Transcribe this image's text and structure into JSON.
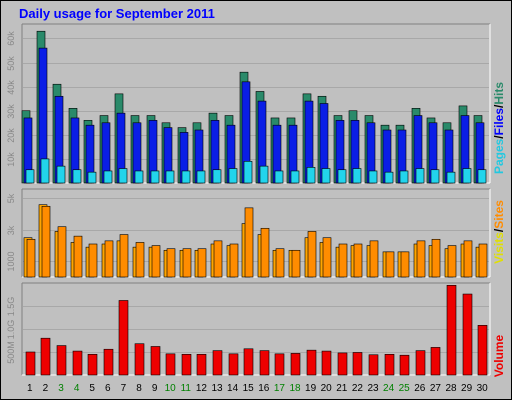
{
  "title": "Daily usage for September 2011",
  "colors": {
    "hits": "#2a8a6a",
    "files": "#0a1ee6",
    "pages": "#22d4ec",
    "visits": "#ffa500",
    "sites": "#ff8c00",
    "volume": "#ee0000",
    "weekend": "#008000",
    "weekday": "#000000"
  },
  "legends": {
    "top": [
      {
        "text": "Pages",
        "color": "#22c8e0"
      },
      {
        "text": "/",
        "color": "#000000"
      },
      {
        "text": "Files",
        "color": "#0000ff"
      },
      {
        "text": "/",
        "color": "#000000"
      },
      {
        "text": "Hits",
        "color": "#2a8a6a"
      }
    ],
    "middle": [
      {
        "text": "Visits",
        "color": "#e0e000"
      },
      {
        "text": "/",
        "color": "#000000"
      },
      {
        "text": "Sites",
        "color": "#ff8c00"
      }
    ],
    "bottom": [
      {
        "text": "Volume",
        "color": "#ee0000"
      }
    ]
  },
  "chart_data": {
    "type": "bar",
    "title": "Daily usage for September 2011",
    "categories": [
      "1",
      "2",
      "3",
      "4",
      "5",
      "6",
      "7",
      "8",
      "9",
      "10",
      "11",
      "12",
      "13",
      "14",
      "15",
      "16",
      "17",
      "18",
      "19",
      "20",
      "21",
      "22",
      "23",
      "24",
      "25",
      "26",
      "27",
      "28",
      "29",
      "30"
    ],
    "weekend_days": [
      "3",
      "4",
      "10",
      "11",
      "17",
      "18",
      "24",
      "25"
    ],
    "panels": [
      {
        "name": "hits-files-pages",
        "yticks": [
          "10k",
          "20k",
          "30k",
          "40k",
          "50k",
          "60k"
        ],
        "ytick_values": [
          10000,
          20000,
          30000,
          40000,
          50000,
          60000
        ],
        "ylim": [
          0,
          66000
        ],
        "series": [
          {
            "name": "Hits",
            "values": [
              30000,
              63000,
              41000,
              31000,
              26000,
              28000,
              37000,
              28000,
              28000,
              25000,
              23000,
              25000,
              29000,
              28000,
              46000,
              38000,
              27000,
              27000,
              37000,
              36000,
              28000,
              30000,
              28000,
              24000,
              24000,
              31000,
              27000,
              25000,
              32000,
              28000
            ]
          },
          {
            "name": "Files",
            "values": [
              27000,
              56000,
              36000,
              27000,
              24000,
              25000,
              29000,
              25000,
              26000,
              23000,
              21000,
              22000,
              26000,
              24000,
              42000,
              34000,
              24000,
              24000,
              34000,
              33000,
              26000,
              26000,
              25000,
              22000,
              22000,
              28000,
              25000,
              22000,
              28000,
              25000
            ]
          },
          {
            "name": "Pages",
            "values": [
              5500,
              10000,
              7000,
              5500,
              4500,
              5000,
              6000,
              5000,
              5000,
              5000,
              5000,
              5000,
              5500,
              6000,
              9000,
              7000,
              5000,
              5000,
              6500,
              6000,
              5500,
              6000,
              5000,
              4500,
              5000,
              6000,
              5500,
              4500,
              6000,
              5500
            ]
          }
        ]
      },
      {
        "name": "visits-sites",
        "yticks": [
          "1000",
          "3k",
          "5k"
        ],
        "ytick_values": [
          1000,
          3000,
          5000
        ],
        "ylim": [
          0,
          5600
        ],
        "series": [
          {
            "name": "Visits",
            "values": [
              2500,
              4600,
              2900,
              2200,
              1900,
              2100,
              2300,
              1900,
              1900,
              1700,
              1700,
              1700,
              2100,
              2000,
              3400,
              2700,
              1700,
              1700,
              2500,
              2200,
              1900,
              2000,
              2000,
              1600,
              1600,
              2100,
              2000,
              1800,
              2100,
              1900
            ]
          },
          {
            "name": "Sites",
            "values": [
              2400,
              4500,
              3200,
              2600,
              2100,
              2300,
              2700,
              2200,
              2000,
              1800,
              1800,
              1800,
              2300,
              2100,
              4400,
              3100,
              1800,
              1700,
              2900,
              2500,
              2100,
              2100,
              2300,
              1600,
              1600,
              2300,
              2400,
              2000,
              2300,
              2100
            ]
          }
        ]
      },
      {
        "name": "volume",
        "yticks": [
          "500M",
          "1.0G",
          "1.5G"
        ],
        "ytick_values": [
          500,
          1000,
          1500
        ],
        "ylim": [
          0,
          2000
        ],
        "series": [
          {
            "name": "Volume",
            "values": [
              500,
              800,
              640,
              520,
              450,
              560,
              1620,
              680,
              620,
              460,
              450,
              450,
              530,
              460,
              570,
              530,
              460,
              470,
              540,
              520,
              480,
              490,
              440,
              450,
              430,
              530,
              600,
              1950,
              1760,
              1080
            ]
          }
        ]
      }
    ]
  }
}
